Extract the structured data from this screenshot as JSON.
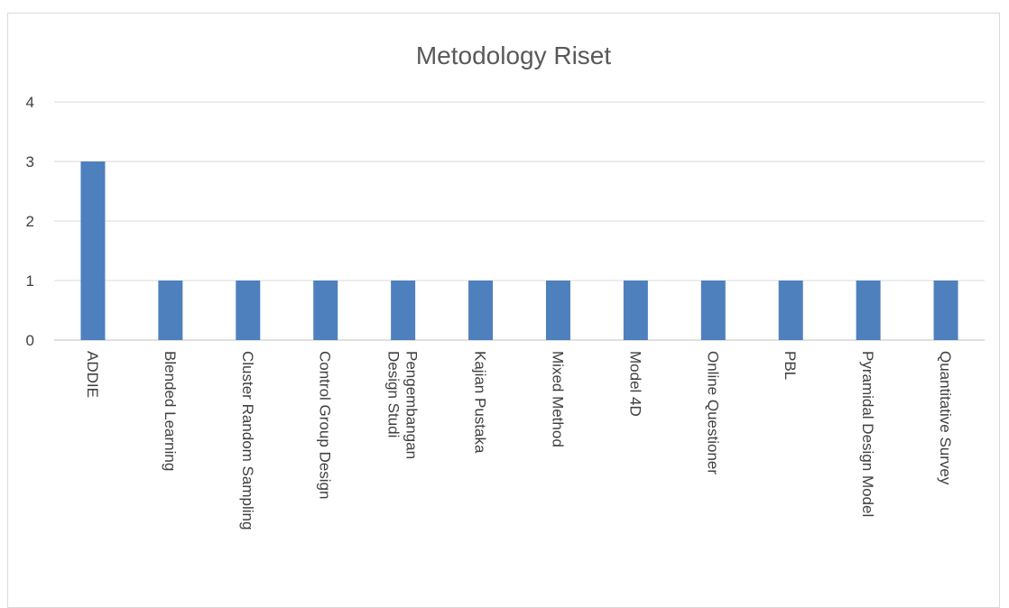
{
  "chart_data": {
    "type": "bar",
    "title": "Metodology Riset",
    "xlabel": "",
    "ylabel": "",
    "ylim": [
      0,
      4
    ],
    "yticks": [
      0,
      1,
      2,
      3,
      4
    ],
    "grid": true,
    "bar_color": "#4e80bd",
    "categories": [
      [
        "ADDIE"
      ],
      [
        "Blended Learning"
      ],
      [
        "Cluster Random Sampling"
      ],
      [
        "Control Group Design"
      ],
      [
        "Design Studi",
        "Pengembangan"
      ],
      [
        "Kajian Pustaka"
      ],
      [
        "Mixed Method"
      ],
      [
        "Model 4D"
      ],
      [
        "Online Questioner"
      ],
      [
        "PBL"
      ],
      [
        "Pyramidal Design Model"
      ],
      [
        "Quantitative Survey"
      ]
    ],
    "values": [
      3,
      1,
      1,
      1,
      1,
      1,
      1,
      1,
      1,
      1,
      1,
      1
    ]
  }
}
